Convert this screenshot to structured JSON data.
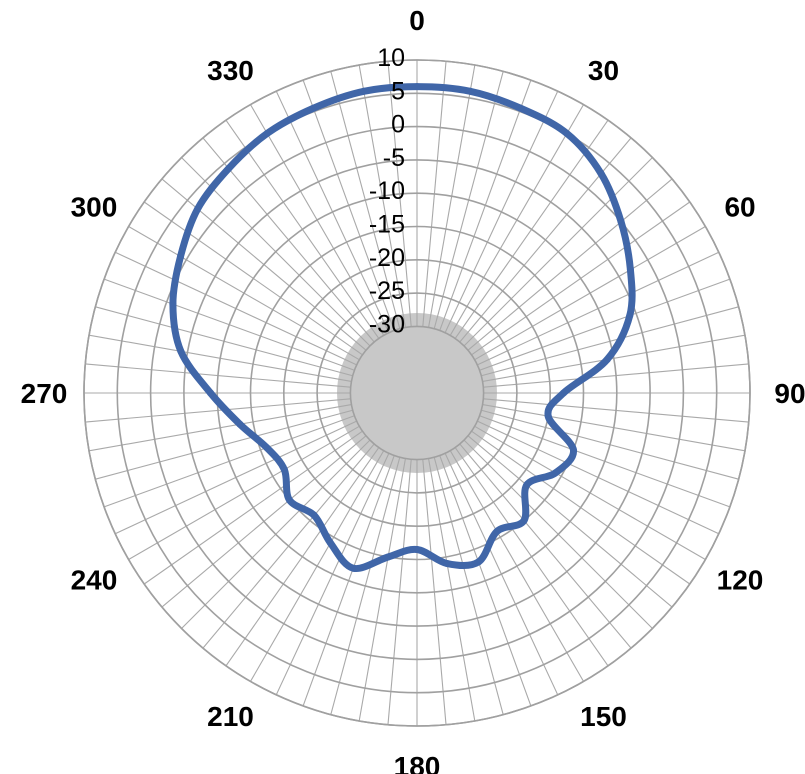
{
  "chart_data": {
    "type": "radar",
    "title": "",
    "angle_labels": [
      "0",
      "30",
      "60",
      "90",
      "120",
      "150",
      "180",
      "210",
      "240",
      "270",
      "300",
      "330"
    ],
    "angle_label_values": [
      0,
      30,
      60,
      90,
      120,
      150,
      180,
      210,
      240,
      270,
      300,
      330
    ],
    "radial_ticks": [
      "10",
      "5",
      "0",
      "-5",
      "-10",
      "-15",
      "-20",
      "-25",
      "-30"
    ],
    "radial_tick_values": [
      10,
      5,
      0,
      -5,
      -10,
      -15,
      -20,
      -25,
      -30
    ],
    "rlim": [
      -40,
      10
    ],
    "angular_step_deg": 5,
    "grid": true,
    "series": [
      {
        "color": "#4066a8",
        "angles": [
          0,
          10,
          20,
          30,
          40,
          50,
          60,
          70,
          80,
          90,
          100,
          110,
          120,
          130,
          140,
          150,
          160,
          170,
          180,
          190,
          200,
          210,
          220,
          230,
          240,
          250,
          260,
          270,
          280,
          290,
          300,
          310,
          320,
          330,
          340,
          350
        ],
        "values": [
          6,
          6,
          5.5,
          5,
          3,
          0,
          -3,
          -6,
          -11,
          -18,
          -20,
          -15,
          -16,
          -18.5,
          -15,
          -16,
          -13,
          -14,
          -16.5,
          -15,
          -12,
          -14,
          -16,
          -15,
          -17,
          -16,
          -13,
          -9,
          -4,
          -1,
          1,
          3,
          4,
          5,
          5.5,
          6
        ]
      }
    ]
  }
}
